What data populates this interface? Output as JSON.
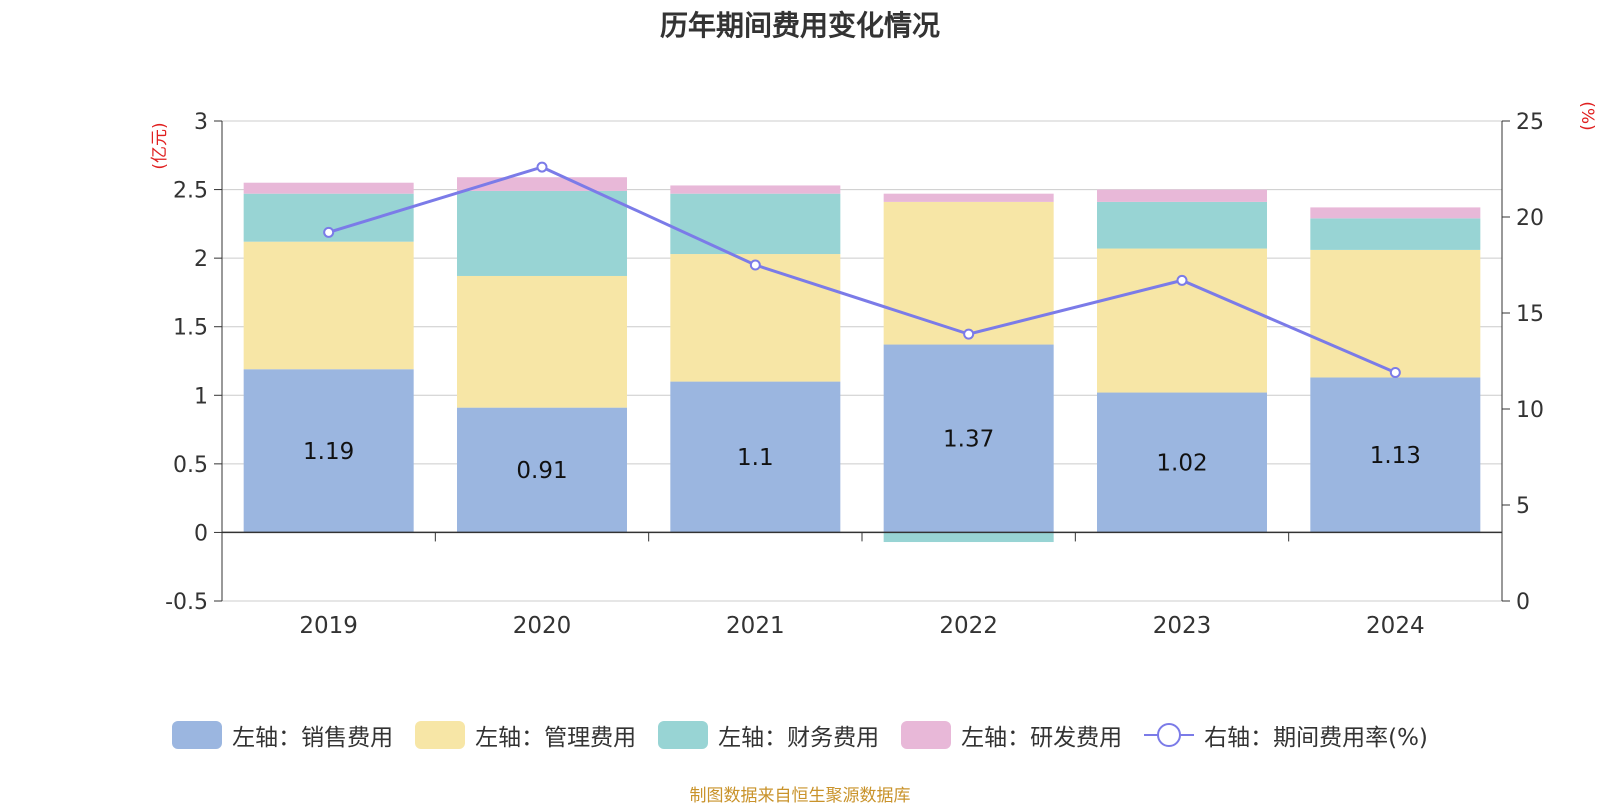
{
  "chart_data": {
    "type": "bar",
    "stacked": true,
    "title": "历年期间费用变化情况",
    "categories": [
      "2019",
      "2020",
      "2021",
      "2022",
      "2023",
      "2024"
    ],
    "series": [
      {
        "name": "左轴：销售费用",
        "axis": "left",
        "color": "#9bb6e0",
        "values": [
          1.19,
          0.91,
          1.1,
          1.37,
          1.02,
          1.13
        ],
        "labels": [
          "1.19",
          "0.91",
          "1.1",
          "1.37",
          "1.02",
          "1.13"
        ]
      },
      {
        "name": "左轴：管理费用",
        "axis": "left",
        "color": "#f7e6a6",
        "values": [
          0.93,
          0.96,
          0.93,
          1.04,
          1.05,
          0.93
        ]
      },
      {
        "name": "左轴：财务费用",
        "axis": "left",
        "color": "#98d4d4",
        "values": [
          0.35,
          0.62,
          0.44,
          -0.07,
          0.34,
          0.23
        ]
      },
      {
        "name": "左轴：研发费用",
        "axis": "left",
        "color": "#e8b8d8",
        "values": [
          0.08,
          0.1,
          0.06,
          0.06,
          0.09,
          0.08
        ]
      },
      {
        "name": "右轴：期间费用率(%)",
        "axis": "right",
        "type": "line",
        "color": "#7b7be8",
        "values": [
          19.2,
          22.6,
          17.5,
          13.9,
          16.7,
          11.9
        ]
      }
    ],
    "left_axis": {
      "unit": "(亿元)",
      "min": -0.5,
      "max": 3,
      "ticks": [
        -0.5,
        0,
        0.5,
        1,
        1.5,
        2,
        2.5,
        3
      ],
      "tick_labels": [
        "-0.5",
        "0",
        "0.5",
        "1",
        "1.5",
        "2",
        "2.5",
        "3"
      ]
    },
    "right_axis": {
      "unit": "(%)",
      "min": 0,
      "max": 25,
      "ticks": [
        0,
        5,
        10,
        15,
        20,
        25
      ],
      "tick_labels": [
        "0",
        "5",
        "10",
        "15",
        "20",
        "25"
      ]
    },
    "grid": true,
    "legend_position": "bottom"
  },
  "legend": {
    "sales": "左轴：销售费用",
    "admin": "左轴：管理费用",
    "finance": "左轴：财务费用",
    "rnd": "左轴：研发费用",
    "rate": "右轴：期间费用率(%)"
  },
  "source": "制图数据来自恒生聚源数据库",
  "colors": {
    "sales": "#9bb6e0",
    "admin": "#f7e6a6",
    "finance": "#98d4d4",
    "rnd": "#e8b8d8",
    "rate": "#7b7be8",
    "axis_unit": "#e02020"
  }
}
